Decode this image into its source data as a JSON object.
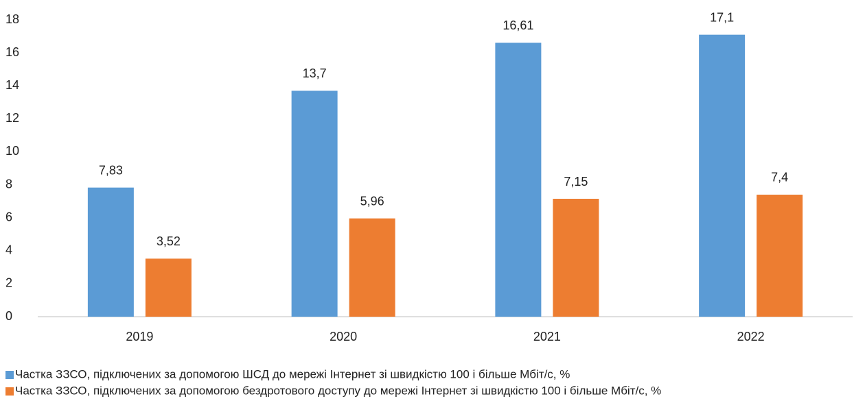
{
  "chart_data": {
    "type": "bar",
    "categories": [
      "2019",
      "2020",
      "2021",
      "2022"
    ],
    "series": [
      {
        "name": "Частка ЗЗСО, підключених за допомогою ШСД до мережі Інтернет зі швидкістю 100 і більше Мбіт/с, %",
        "color": "#5b9bd5",
        "values": [
          7.83,
          13.7,
          16.61,
          17.1
        ],
        "value_labels": [
          "7,83",
          "13,7",
          "16,61",
          "17,1"
        ]
      },
      {
        "name": "Частка ЗЗСО, підключених за допомогою бездротового доступу до мережі Інтернет зі швидкістю 100 і більше Мбіт/с, %",
        "color": "#ed7d31",
        "values": [
          3.52,
          5.96,
          7.15,
          7.4
        ],
        "value_labels": [
          "3,52",
          "5,96",
          "7,15",
          "7,4"
        ]
      }
    ],
    "ylim": [
      0,
      18
    ],
    "yticks": [
      0,
      2,
      4,
      6,
      8,
      10,
      12,
      14,
      16,
      18
    ],
    "grid": false,
    "legend": "bottom"
  }
}
